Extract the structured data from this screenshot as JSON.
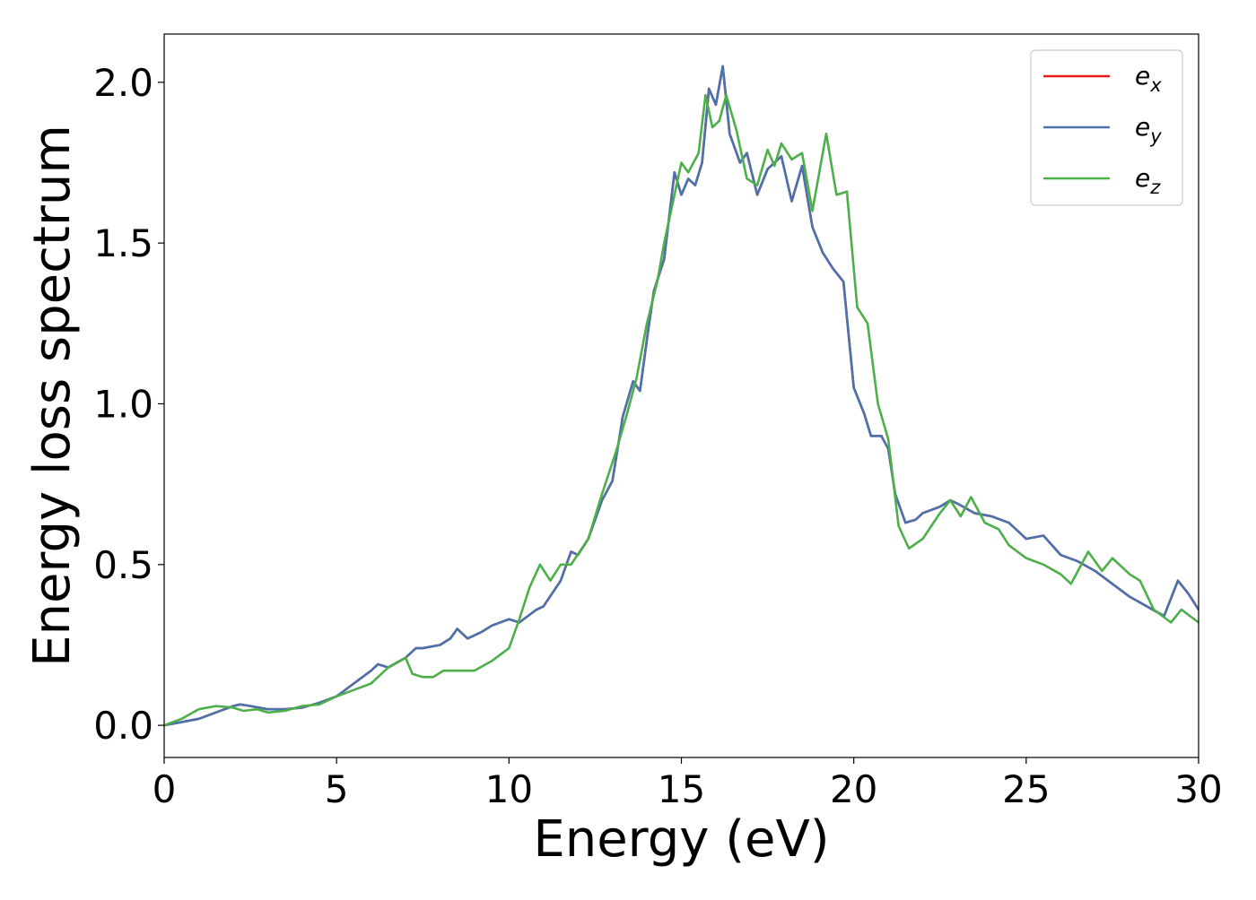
{
  "chart_data": {
    "type": "line",
    "title": "",
    "xlabel": "Energy (eV)",
    "ylabel": "Energy loss spectrum",
    "xlim": [
      0,
      30
    ],
    "ylim": [
      -0.1,
      2.15
    ],
    "xticks": [
      0,
      5,
      10,
      15,
      20,
      25,
      30
    ],
    "xtick_labels": [
      "0",
      "5",
      "10",
      "15",
      "20",
      "25",
      "30"
    ],
    "yticks": [
      0.0,
      0.5,
      1.0,
      1.5,
      2.0
    ],
    "ytick_labels": [
      "0.0",
      "0.5",
      "1.0",
      "1.5",
      "2.0"
    ],
    "grid": false,
    "legend_position": "top-right",
    "series": [
      {
        "name": "e_x",
        "legend_main": "e",
        "legend_sub": "x",
        "color": "#e41a1c",
        "points": [
          [
            0,
            0
          ],
          [
            0.5,
            0.01
          ],
          [
            1,
            0.02
          ],
          [
            1.5,
            0.04
          ],
          [
            2,
            0.06
          ],
          [
            2.2,
            0.065
          ],
          [
            2.5,
            0.06
          ],
          [
            3,
            0.05
          ],
          [
            3.5,
            0.05
          ],
          [
            4,
            0.055
          ],
          [
            4.5,
            0.07
          ],
          [
            5,
            0.09
          ],
          [
            5.5,
            0.13
          ],
          [
            6,
            0.17
          ],
          [
            6.2,
            0.19
          ],
          [
            6.5,
            0.18
          ],
          [
            7,
            0.21
          ],
          [
            7.3,
            0.24
          ],
          [
            7.5,
            0.24
          ],
          [
            8,
            0.25
          ],
          [
            8.3,
            0.27
          ],
          [
            8.5,
            0.3
          ],
          [
            8.8,
            0.27
          ],
          [
            9.2,
            0.29
          ],
          [
            9.5,
            0.31
          ],
          [
            10,
            0.33
          ],
          [
            10.3,
            0.32
          ],
          [
            10.8,
            0.36
          ],
          [
            11,
            0.37
          ],
          [
            11.5,
            0.45
          ],
          [
            11.8,
            0.54
          ],
          [
            12,
            0.53
          ],
          [
            12.3,
            0.58
          ],
          [
            12.7,
            0.7
          ],
          [
            13,
            0.76
          ],
          [
            13.3,
            0.96
          ],
          [
            13.6,
            1.07
          ],
          [
            13.8,
            1.04
          ],
          [
            14,
            1.2
          ],
          [
            14.2,
            1.35
          ],
          [
            14.5,
            1.45
          ],
          [
            14.8,
            1.72
          ],
          [
            15,
            1.65
          ],
          [
            15.2,
            1.7
          ],
          [
            15.4,
            1.68
          ],
          [
            15.6,
            1.75
          ],
          [
            15.8,
            1.98
          ],
          [
            16,
            1.93
          ],
          [
            16.2,
            2.05
          ],
          [
            16.4,
            1.84
          ],
          [
            16.7,
            1.75
          ],
          [
            16.9,
            1.78
          ],
          [
            17.2,
            1.65
          ],
          [
            17.5,
            1.73
          ],
          [
            17.9,
            1.77
          ],
          [
            18.2,
            1.63
          ],
          [
            18.5,
            1.74
          ],
          [
            18.8,
            1.55
          ],
          [
            19.1,
            1.47
          ],
          [
            19.4,
            1.42
          ],
          [
            19.7,
            1.38
          ],
          [
            20,
            1.05
          ],
          [
            20.3,
            0.97
          ],
          [
            20.5,
            0.9
          ],
          [
            20.8,
            0.9
          ],
          [
            21,
            0.86
          ],
          [
            21.2,
            0.72
          ],
          [
            21.5,
            0.63
          ],
          [
            21.8,
            0.64
          ],
          [
            22,
            0.66
          ],
          [
            22.5,
            0.68
          ],
          [
            22.8,
            0.7
          ],
          [
            23,
            0.69
          ],
          [
            23.5,
            0.66
          ],
          [
            24,
            0.65
          ],
          [
            24.5,
            0.63
          ],
          [
            25,
            0.58
          ],
          [
            25.5,
            0.59
          ],
          [
            26,
            0.53
          ],
          [
            26.5,
            0.51
          ],
          [
            27,
            0.48
          ],
          [
            27.5,
            0.44
          ],
          [
            28,
            0.4
          ],
          [
            28.5,
            0.37
          ],
          [
            29,
            0.34
          ],
          [
            29.4,
            0.45
          ],
          [
            29.7,
            0.41
          ],
          [
            30,
            0.36
          ]
        ]
      },
      {
        "name": "e_y",
        "legend_main": "e",
        "legend_sub": "y",
        "color": "#4a72ac",
        "points": [
          [
            0,
            0
          ],
          [
            0.5,
            0.01
          ],
          [
            1,
            0.02
          ],
          [
            1.5,
            0.04
          ],
          [
            2,
            0.06
          ],
          [
            2.2,
            0.065
          ],
          [
            2.5,
            0.06
          ],
          [
            3,
            0.05
          ],
          [
            3.5,
            0.05
          ],
          [
            4,
            0.055
          ],
          [
            4.5,
            0.07
          ],
          [
            5,
            0.09
          ],
          [
            5.5,
            0.13
          ],
          [
            6,
            0.17
          ],
          [
            6.2,
            0.19
          ],
          [
            6.5,
            0.18
          ],
          [
            7,
            0.21
          ],
          [
            7.3,
            0.24
          ],
          [
            7.5,
            0.24
          ],
          [
            8,
            0.25
          ],
          [
            8.3,
            0.27
          ],
          [
            8.5,
            0.3
          ],
          [
            8.8,
            0.27
          ],
          [
            9.2,
            0.29
          ],
          [
            9.5,
            0.31
          ],
          [
            10,
            0.33
          ],
          [
            10.3,
            0.32
          ],
          [
            10.8,
            0.36
          ],
          [
            11,
            0.37
          ],
          [
            11.5,
            0.45
          ],
          [
            11.8,
            0.54
          ],
          [
            12,
            0.53
          ],
          [
            12.3,
            0.58
          ],
          [
            12.7,
            0.7
          ],
          [
            13,
            0.76
          ],
          [
            13.3,
            0.96
          ],
          [
            13.6,
            1.07
          ],
          [
            13.8,
            1.04
          ],
          [
            14,
            1.2
          ],
          [
            14.2,
            1.35
          ],
          [
            14.5,
            1.45
          ],
          [
            14.8,
            1.72
          ],
          [
            15,
            1.65
          ],
          [
            15.2,
            1.7
          ],
          [
            15.4,
            1.68
          ],
          [
            15.6,
            1.75
          ],
          [
            15.8,
            1.98
          ],
          [
            16,
            1.93
          ],
          [
            16.2,
            2.05
          ],
          [
            16.4,
            1.84
          ],
          [
            16.7,
            1.75
          ],
          [
            16.9,
            1.78
          ],
          [
            17.2,
            1.65
          ],
          [
            17.5,
            1.73
          ],
          [
            17.9,
            1.77
          ],
          [
            18.2,
            1.63
          ],
          [
            18.5,
            1.74
          ],
          [
            18.8,
            1.55
          ],
          [
            19.1,
            1.47
          ],
          [
            19.4,
            1.42
          ],
          [
            19.7,
            1.38
          ],
          [
            20,
            1.05
          ],
          [
            20.3,
            0.97
          ],
          [
            20.5,
            0.9
          ],
          [
            20.8,
            0.9
          ],
          [
            21,
            0.86
          ],
          [
            21.2,
            0.72
          ],
          [
            21.5,
            0.63
          ],
          [
            21.8,
            0.64
          ],
          [
            22,
            0.66
          ],
          [
            22.5,
            0.68
          ],
          [
            22.8,
            0.7
          ],
          [
            23,
            0.69
          ],
          [
            23.5,
            0.66
          ],
          [
            24,
            0.65
          ],
          [
            24.5,
            0.63
          ],
          [
            25,
            0.58
          ],
          [
            25.5,
            0.59
          ],
          [
            26,
            0.53
          ],
          [
            26.5,
            0.51
          ],
          [
            27,
            0.48
          ],
          [
            27.5,
            0.44
          ],
          [
            28,
            0.4
          ],
          [
            28.5,
            0.37
          ],
          [
            29,
            0.34
          ],
          [
            29.4,
            0.45
          ],
          [
            29.7,
            0.41
          ],
          [
            30,
            0.36
          ]
        ]
      },
      {
        "name": "e_z",
        "legend_main": "e",
        "legend_sub": "z",
        "color": "#4daf4a",
        "points": [
          [
            0,
            0
          ],
          [
            0.5,
            0.02
          ],
          [
            1,
            0.05
          ],
          [
            1.5,
            0.06
          ],
          [
            2,
            0.055
          ],
          [
            2.3,
            0.045
          ],
          [
            2.7,
            0.05
          ],
          [
            3,
            0.04
          ],
          [
            3.5,
            0.045
          ],
          [
            4,
            0.06
          ],
          [
            4.5,
            0.065
          ],
          [
            5,
            0.09
          ],
          [
            5.5,
            0.11
          ],
          [
            6,
            0.13
          ],
          [
            6.5,
            0.18
          ],
          [
            7,
            0.21
          ],
          [
            7.2,
            0.16
          ],
          [
            7.5,
            0.15
          ],
          [
            7.8,
            0.15
          ],
          [
            8.1,
            0.17
          ],
          [
            8.5,
            0.17
          ],
          [
            9,
            0.17
          ],
          [
            9.5,
            0.2
          ],
          [
            10,
            0.24
          ],
          [
            10.3,
            0.33
          ],
          [
            10.6,
            0.43
          ],
          [
            10.9,
            0.5
          ],
          [
            11.2,
            0.45
          ],
          [
            11.5,
            0.5
          ],
          [
            11.8,
            0.5
          ],
          [
            12.3,
            0.58
          ],
          [
            12.7,
            0.72
          ],
          [
            13.1,
            0.85
          ],
          [
            13.4,
            0.96
          ],
          [
            13.7,
            1.08
          ],
          [
            14,
            1.25
          ],
          [
            14.3,
            1.38
          ],
          [
            14.5,
            1.5
          ],
          [
            14.8,
            1.65
          ],
          [
            15,
            1.75
          ],
          [
            15.2,
            1.72
          ],
          [
            15.5,
            1.78
          ],
          [
            15.7,
            1.96
          ],
          [
            15.9,
            1.86
          ],
          [
            16.1,
            1.88
          ],
          [
            16.3,
            1.96
          ],
          [
            16.6,
            1.85
          ],
          [
            16.9,
            1.7
          ],
          [
            17.2,
            1.68
          ],
          [
            17.5,
            1.79
          ],
          [
            17.7,
            1.74
          ],
          [
            17.9,
            1.81
          ],
          [
            18.2,
            1.76
          ],
          [
            18.5,
            1.78
          ],
          [
            18.8,
            1.6
          ],
          [
            19.2,
            1.84
          ],
          [
            19.5,
            1.65
          ],
          [
            19.8,
            1.66
          ],
          [
            20.1,
            1.3
          ],
          [
            20.4,
            1.25
          ],
          [
            20.7,
            1.0
          ],
          [
            21,
            0.89
          ],
          [
            21.3,
            0.62
          ],
          [
            21.6,
            0.55
          ],
          [
            22,
            0.58
          ],
          [
            22.5,
            0.66
          ],
          [
            22.8,
            0.7
          ],
          [
            23.1,
            0.65
          ],
          [
            23.4,
            0.71
          ],
          [
            23.8,
            0.63
          ],
          [
            24.2,
            0.61
          ],
          [
            24.5,
            0.56
          ],
          [
            25,
            0.52
          ],
          [
            25.5,
            0.5
          ],
          [
            26,
            0.47
          ],
          [
            26.3,
            0.44
          ],
          [
            26.8,
            0.54
          ],
          [
            27.2,
            0.48
          ],
          [
            27.5,
            0.52
          ],
          [
            28,
            0.47
          ],
          [
            28.3,
            0.45
          ],
          [
            28.7,
            0.36
          ],
          [
            29.2,
            0.32
          ],
          [
            29.5,
            0.36
          ],
          [
            30,
            0.32
          ]
        ]
      }
    ]
  }
}
